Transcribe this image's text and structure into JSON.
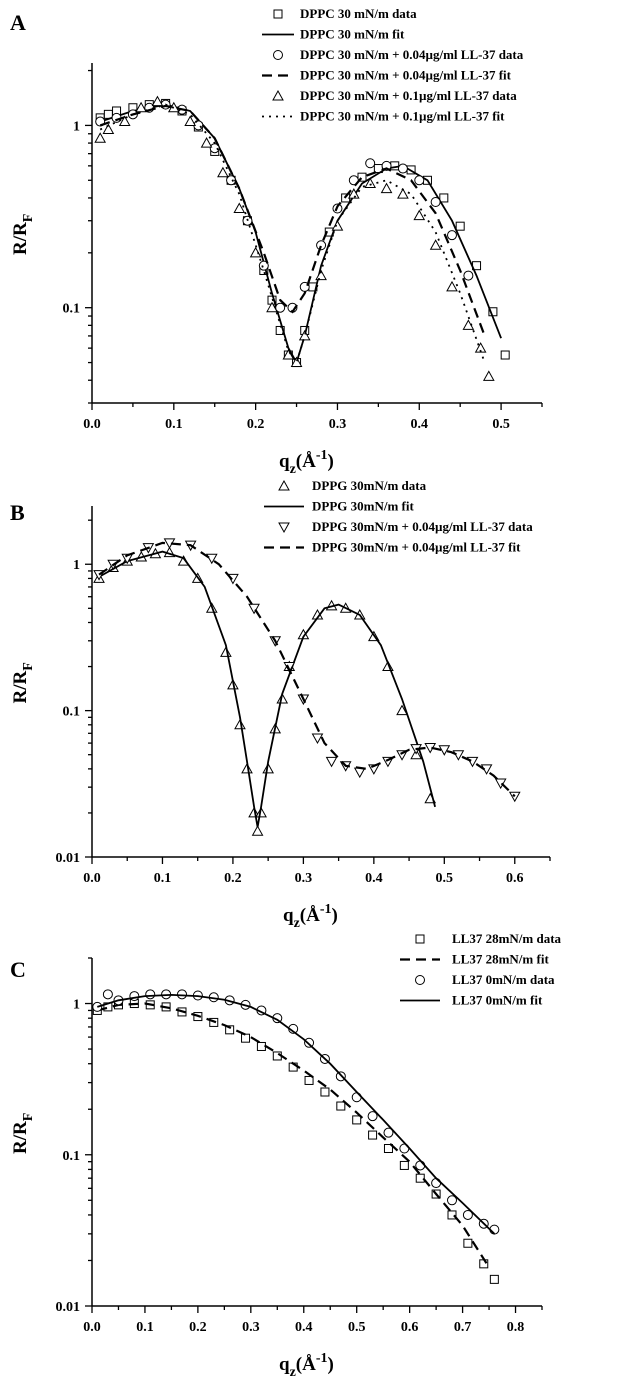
{
  "chart_data": [
    {
      "panel": "A",
      "type": "scatter",
      "xlabel": "q_z(Å^-1)",
      "ylabel": "R/R_F",
      "y_scale": "log",
      "xlim": [
        0.0,
        0.55
      ],
      "ylim": [
        0.03,
        2.2
      ],
      "xticks": [
        "0.0",
        "0.1",
        "0.2",
        "0.3",
        "0.4",
        "0.5"
      ],
      "yticks": [
        "0.1",
        "1"
      ],
      "legend_position": "top-right",
      "series": [
        {
          "name": "DPPC 30 mN/m data",
          "kind": "points",
          "marker": "square",
          "x": [
            0.01,
            0.02,
            0.03,
            0.05,
            0.07,
            0.09,
            0.11,
            0.13,
            0.15,
            0.17,
            0.19,
            0.21,
            0.22,
            0.23,
            0.24,
            0.25,
            0.26,
            0.27,
            0.29,
            0.31,
            0.33,
            0.35,
            0.37,
            0.39,
            0.41,
            0.43,
            0.45,
            0.47,
            0.49,
            0.505
          ],
          "y": [
            1.1,
            1.15,
            1.2,
            1.25,
            1.3,
            1.32,
            1.2,
            0.98,
            0.72,
            0.5,
            0.3,
            0.16,
            0.11,
            0.075,
            0.055,
            0.05,
            0.075,
            0.13,
            0.26,
            0.4,
            0.52,
            0.58,
            0.6,
            0.57,
            0.5,
            0.4,
            0.28,
            0.17,
            0.095,
            0.055
          ]
        },
        {
          "name": "DPPC 30 mN/m fit",
          "kind": "solid",
          "x": [
            0.01,
            0.05,
            0.09,
            0.12,
            0.15,
            0.18,
            0.2,
            0.22,
            0.24,
            0.25,
            0.26,
            0.28,
            0.3,
            0.33,
            0.36,
            0.38,
            0.41,
            0.44,
            0.47,
            0.5
          ],
          "y": [
            1.05,
            1.2,
            1.3,
            1.2,
            0.85,
            0.45,
            0.26,
            0.12,
            0.06,
            0.05,
            0.07,
            0.17,
            0.3,
            0.48,
            0.58,
            0.6,
            0.5,
            0.3,
            0.15,
            0.068
          ]
        },
        {
          "name": "DPPC 30 mN/m + 0.04µg/ml LL-37 data",
          "kind": "points",
          "marker": "circle",
          "x": [
            0.01,
            0.03,
            0.05,
            0.07,
            0.09,
            0.11,
            0.13,
            0.15,
            0.17,
            0.19,
            0.21,
            0.23,
            0.245,
            0.26,
            0.28,
            0.3,
            0.32,
            0.34,
            0.36,
            0.38,
            0.4,
            0.42,
            0.44,
            0.46
          ],
          "y": [
            1.05,
            1.1,
            1.15,
            1.25,
            1.3,
            1.22,
            1.0,
            0.75,
            0.5,
            0.3,
            0.17,
            0.1,
            0.1,
            0.13,
            0.22,
            0.35,
            0.5,
            0.62,
            0.6,
            0.58,
            0.5,
            0.38,
            0.25,
            0.15
          ]
        },
        {
          "name": "DPPC 30 mN/m + 0.04µg/ml LL-37 fit",
          "kind": "dashed",
          "x": [
            0.01,
            0.05,
            0.09,
            0.12,
            0.15,
            0.18,
            0.21,
            0.23,
            0.245,
            0.26,
            0.28,
            0.3,
            0.33,
            0.36,
            0.39,
            0.42,
            0.45,
            0.48
          ],
          "y": [
            1.0,
            1.15,
            1.28,
            1.2,
            0.85,
            0.45,
            0.2,
            0.11,
            0.095,
            0.12,
            0.22,
            0.36,
            0.52,
            0.58,
            0.5,
            0.33,
            0.16,
            0.07
          ]
        },
        {
          "name": "DPPC 30 mN/m + 0.1µg/ml LL-37 data",
          "kind": "points",
          "marker": "triangle",
          "x": [
            0.01,
            0.02,
            0.04,
            0.06,
            0.08,
            0.1,
            0.12,
            0.14,
            0.16,
            0.18,
            0.2,
            0.22,
            0.24,
            0.25,
            0.26,
            0.28,
            0.3,
            0.32,
            0.34,
            0.36,
            0.38,
            0.4,
            0.42,
            0.44,
            0.46,
            0.475,
            0.485
          ],
          "y": [
            0.85,
            0.95,
            1.05,
            1.25,
            1.35,
            1.25,
            1.05,
            0.8,
            0.55,
            0.35,
            0.2,
            0.1,
            0.055,
            0.05,
            0.07,
            0.15,
            0.28,
            0.42,
            0.48,
            0.45,
            0.42,
            0.32,
            0.22,
            0.13,
            0.08,
            0.06,
            0.042
          ]
        },
        {
          "name": "DPPC 30 mN/m + 0.1µg/ml LL-37 fit",
          "kind": "dotted",
          "x": [
            0.01,
            0.05,
            0.09,
            0.12,
            0.15,
            0.18,
            0.21,
            0.24,
            0.25,
            0.26,
            0.28,
            0.3,
            0.33,
            0.36,
            0.39,
            0.42,
            0.45,
            0.48
          ],
          "y": [
            0.95,
            1.15,
            1.3,
            1.15,
            0.8,
            0.42,
            0.16,
            0.058,
            0.05,
            0.07,
            0.16,
            0.3,
            0.46,
            0.5,
            0.42,
            0.26,
            0.12,
            0.05
          ]
        }
      ]
    },
    {
      "panel": "B",
      "type": "scatter",
      "xlabel": "q_z(Å^-1)",
      "ylabel": "R/R_F",
      "y_scale": "log",
      "xlim": [
        0.0,
        0.65
      ],
      "ylim": [
        0.01,
        2.5
      ],
      "xticks": [
        "0.0",
        "0.1",
        "0.2",
        "0.3",
        "0.4",
        "0.5",
        "0.6"
      ],
      "yticks": [
        "0.01",
        "0.1",
        "1"
      ],
      "legend_position": "top-right",
      "series": [
        {
          "name": "DPPG 30mN/m data",
          "kind": "points",
          "marker": "triangle",
          "x": [
            0.01,
            0.03,
            0.05,
            0.07,
            0.09,
            0.11,
            0.13,
            0.15,
            0.17,
            0.19,
            0.2,
            0.21,
            0.22,
            0.23,
            0.235,
            0.24,
            0.25,
            0.26,
            0.27,
            0.28,
            0.3,
            0.32,
            0.34,
            0.36,
            0.38,
            0.4,
            0.42,
            0.44,
            0.46,
            0.48
          ],
          "y": [
            0.8,
            0.95,
            1.05,
            1.12,
            1.18,
            1.2,
            1.05,
            0.8,
            0.5,
            0.25,
            0.15,
            0.08,
            0.04,
            0.02,
            0.015,
            0.02,
            0.04,
            0.075,
            0.12,
            0.2,
            0.33,
            0.45,
            0.52,
            0.5,
            0.45,
            0.32,
            0.2,
            0.1,
            0.05,
            0.025
          ]
        },
        {
          "name": "DPPG 30mN/m fit",
          "kind": "solid",
          "x": [
            0.01,
            0.05,
            0.1,
            0.13,
            0.16,
            0.19,
            0.21,
            0.22,
            0.23,
            0.235,
            0.24,
            0.25,
            0.27,
            0.3,
            0.33,
            0.35,
            0.38,
            0.41,
            0.44,
            0.47,
            0.487
          ],
          "y": [
            0.82,
            1.05,
            1.22,
            1.1,
            0.7,
            0.28,
            0.09,
            0.045,
            0.022,
            0.016,
            0.022,
            0.045,
            0.13,
            0.32,
            0.5,
            0.53,
            0.45,
            0.28,
            0.12,
            0.045,
            0.022
          ]
        },
        {
          "name": "DPPG 30mN/m + 0.04µg/ml LL-37 data",
          "kind": "points",
          "marker": "inverted-triangle",
          "x": [
            0.01,
            0.03,
            0.05,
            0.08,
            0.11,
            0.14,
            0.17,
            0.2,
            0.23,
            0.26,
            0.28,
            0.3,
            0.32,
            0.34,
            0.36,
            0.38,
            0.4,
            0.42,
            0.44,
            0.46,
            0.48,
            0.5,
            0.52,
            0.54,
            0.56,
            0.58,
            0.6
          ],
          "y": [
            0.85,
            1.0,
            1.1,
            1.3,
            1.4,
            1.35,
            1.1,
            0.8,
            0.5,
            0.3,
            0.2,
            0.12,
            0.065,
            0.045,
            0.042,
            0.038,
            0.04,
            0.045,
            0.05,
            0.055,
            0.056,
            0.054,
            0.05,
            0.045,
            0.04,
            0.032,
            0.026
          ]
        },
        {
          "name": "DPPG 30mN/m + 0.04µg/ml LL-37 fit",
          "kind": "dashed",
          "x": [
            0.01,
            0.05,
            0.1,
            0.14,
            0.18,
            0.22,
            0.26,
            0.3,
            0.33,
            0.36,
            0.39,
            0.42,
            0.45,
            0.48,
            0.51,
            0.54,
            0.57,
            0.6
          ],
          "y": [
            0.85,
            1.15,
            1.4,
            1.35,
            1.0,
            0.6,
            0.3,
            0.12,
            0.06,
            0.042,
            0.04,
            0.046,
            0.054,
            0.056,
            0.052,
            0.045,
            0.036,
            0.026
          ]
        }
      ]
    },
    {
      "panel": "C",
      "type": "scatter",
      "xlabel": "q_z(Å^-1)",
      "ylabel": "R/R_F",
      "y_scale": "log",
      "xlim": [
        0.0,
        0.85
      ],
      "ylim": [
        0.01,
        2.0
      ],
      "xticks": [
        "0.0",
        "0.1",
        "0.2",
        "0.3",
        "0.4",
        "0.5",
        "0.6",
        "0.7",
        "0.8"
      ],
      "yticks": [
        "0.01",
        "0.1",
        "1"
      ],
      "legend_position": "top-right",
      "series": [
        {
          "name": "LL37 28mN/m data",
          "kind": "points",
          "marker": "square",
          "x": [
            0.01,
            0.03,
            0.05,
            0.08,
            0.11,
            0.14,
            0.17,
            0.2,
            0.23,
            0.26,
            0.29,
            0.32,
            0.35,
            0.38,
            0.41,
            0.44,
            0.47,
            0.5,
            0.53,
            0.56,
            0.59,
            0.62,
            0.65,
            0.68,
            0.71,
            0.74,
            0.76
          ],
          "y": [
            0.9,
            0.95,
            0.98,
            1.0,
            0.98,
            0.95,
            0.88,
            0.82,
            0.75,
            0.67,
            0.59,
            0.52,
            0.45,
            0.38,
            0.31,
            0.26,
            0.21,
            0.17,
            0.135,
            0.11,
            0.085,
            0.07,
            0.055,
            0.04,
            0.026,
            0.019,
            0.015
          ]
        },
        {
          "name": "LL37 28mN/m fit",
          "kind": "dashed",
          "x": [
            0.01,
            0.05,
            0.1,
            0.15,
            0.2,
            0.25,
            0.3,
            0.35,
            0.4,
            0.45,
            0.5,
            0.55,
            0.6,
            0.65,
            0.7,
            0.75
          ],
          "y": [
            0.9,
            0.98,
            1.0,
            0.93,
            0.83,
            0.72,
            0.6,
            0.47,
            0.36,
            0.27,
            0.19,
            0.13,
            0.09,
            0.055,
            0.034,
            0.018
          ]
        },
        {
          "name": "LL37 0mN/m data",
          "kind": "points",
          "marker": "circle",
          "x": [
            0.01,
            0.03,
            0.05,
            0.08,
            0.11,
            0.14,
            0.17,
            0.2,
            0.23,
            0.26,
            0.29,
            0.32,
            0.35,
            0.38,
            0.41,
            0.44,
            0.47,
            0.5,
            0.53,
            0.56,
            0.59,
            0.62,
            0.65,
            0.68,
            0.71,
            0.74,
            0.76
          ],
          "y": [
            0.95,
            1.15,
            1.05,
            1.12,
            1.15,
            1.15,
            1.15,
            1.13,
            1.1,
            1.05,
            0.98,
            0.9,
            0.8,
            0.68,
            0.55,
            0.43,
            0.33,
            0.24,
            0.18,
            0.14,
            0.11,
            0.085,
            0.065,
            0.05,
            0.04,
            0.035,
            0.032
          ]
        },
        {
          "name": "LL37 0mN/m fit",
          "kind": "solid",
          "x": [
            0.01,
            0.05,
            0.1,
            0.15,
            0.2,
            0.25,
            0.3,
            0.35,
            0.4,
            0.45,
            0.5,
            0.55,
            0.6,
            0.65,
            0.7,
            0.76
          ],
          "y": [
            0.95,
            1.05,
            1.12,
            1.14,
            1.12,
            1.06,
            0.95,
            0.78,
            0.58,
            0.4,
            0.26,
            0.17,
            0.11,
            0.07,
            0.048,
            0.03
          ]
        }
      ]
    }
  ],
  "labels": {
    "panelA": "A",
    "panelB": "B",
    "panelC": "C",
    "y_main": "R/R",
    "y_sub": "F",
    "x_main": "q",
    "x_sub": "z",
    "x_unit_open": "(Å",
    "x_sup": "-1",
    "x_unit_close": ")"
  }
}
